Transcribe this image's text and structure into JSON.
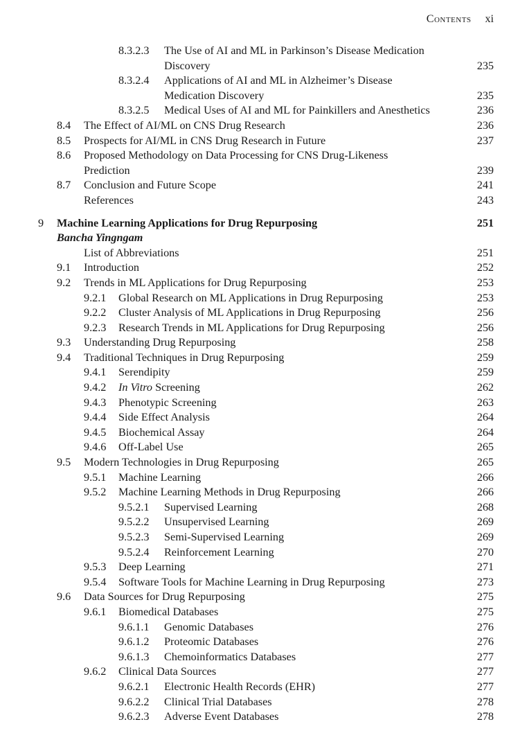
{
  "header": {
    "title": "Contents",
    "page": "xi"
  },
  "entries": [
    {
      "level": 3,
      "num": "8.3.2.3",
      "lines": [
        "The Use of AI and ML in Parkinson’s Disease Medication",
        "Discovery"
      ],
      "page": "235"
    },
    {
      "level": 3,
      "num": "8.3.2.4",
      "lines": [
        "Applications of AI and ML in Alzheimer’s Disease",
        "Medication Discovery"
      ],
      "page": "235"
    },
    {
      "level": 3,
      "num": "8.3.2.5",
      "lines": [
        "Medical Uses of AI and ML for Painkillers and Anesthetics"
      ],
      "page": "236"
    },
    {
      "level": 1,
      "num": "8.4",
      "lines": [
        "The Effect of AI/ML on CNS Drug Research"
      ],
      "page": "236"
    },
    {
      "level": 1,
      "num": "8.5",
      "lines": [
        "Prospects for AI/ML in CNS Drug Research in Future"
      ],
      "page": "237"
    },
    {
      "level": 1,
      "num": "8.6",
      "lines": [
        "Proposed Methodology on Data Processing for CNS Drug-Likeness",
        "Prediction"
      ],
      "page": "239"
    },
    {
      "level": 1,
      "num": "8.7",
      "lines": [
        "Conclusion and Future Scope"
      ],
      "page": "241"
    },
    {
      "level": 1,
      "num": "",
      "lines": [
        "References"
      ],
      "page": "243"
    },
    {
      "level": 0,
      "num": "9",
      "lines": [
        "Machine Learning Applications for Drug Repurposing"
      ],
      "page": "251",
      "author": "Bancha Yingngam"
    },
    {
      "level": 1,
      "num": "",
      "lines": [
        "List of Abbreviations"
      ],
      "page": "251"
    },
    {
      "level": 1,
      "num": "9.1",
      "lines": [
        "Introduction"
      ],
      "page": "252"
    },
    {
      "level": 1,
      "num": "9.2",
      "lines": [
        "Trends in ML Applications for Drug Repurposing"
      ],
      "page": "253"
    },
    {
      "level": 2,
      "num": "9.2.1",
      "lines": [
        "Global Research on ML Applications in Drug Repurposing"
      ],
      "page": "253"
    },
    {
      "level": 2,
      "num": "9.2.2",
      "lines": [
        "Cluster Analysis of ML Applications in Drug Repurposing"
      ],
      "page": "256"
    },
    {
      "level": 2,
      "num": "9.2.3",
      "lines": [
        "Research Trends in ML Applications for Drug Repurposing"
      ],
      "page": "256"
    },
    {
      "level": 1,
      "num": "9.3",
      "lines": [
        "Understanding Drug Repurposing"
      ],
      "page": "258"
    },
    {
      "level": 1,
      "num": "9.4",
      "lines": [
        "Traditional Techniques in Drug Repurposing"
      ],
      "page": "259"
    },
    {
      "level": 2,
      "num": "9.4.1",
      "lines": [
        "Serendipity"
      ],
      "page": "259"
    },
    {
      "level": 2,
      "num": "9.4.2",
      "italic": "In Vitro",
      "lines": [
        " Screening"
      ],
      "page": "262"
    },
    {
      "level": 2,
      "num": "9.4.3",
      "lines": [
        "Phenotypic Screening"
      ],
      "page": "263"
    },
    {
      "level": 2,
      "num": "9.4.4",
      "lines": [
        "Side Effect Analysis"
      ],
      "page": "264"
    },
    {
      "level": 2,
      "num": "9.4.5",
      "lines": [
        "Biochemical Assay"
      ],
      "page": "264"
    },
    {
      "level": 2,
      "num": "9.4.6",
      "lines": [
        "Off-Label Use"
      ],
      "page": "265"
    },
    {
      "level": 1,
      "num": "9.5",
      "lines": [
        "Modern Technologies in Drug Repurposing"
      ],
      "page": "265"
    },
    {
      "level": 2,
      "num": "9.5.1",
      "lines": [
        "Machine Learning"
      ],
      "page": "266"
    },
    {
      "level": 2,
      "num": "9.5.2",
      "lines": [
        "Machine Learning Methods in Drug Repurposing"
      ],
      "page": "266"
    },
    {
      "level": 3,
      "num": "9.5.2.1",
      "lines": [
        "Supervised Learning"
      ],
      "page": "268"
    },
    {
      "level": 3,
      "num": "9.5.2.2",
      "lines": [
        "Unsupervised Learning"
      ],
      "page": "269"
    },
    {
      "level": 3,
      "num": "9.5.2.3",
      "lines": [
        "Semi-Supervised Learning"
      ],
      "page": "269"
    },
    {
      "level": 3,
      "num": "9.5.2.4",
      "lines": [
        "Reinforcement Learning"
      ],
      "page": "270"
    },
    {
      "level": 2,
      "num": "9.5.3",
      "lines": [
        "Deep Learning"
      ],
      "page": "271"
    },
    {
      "level": 2,
      "num": "9.5.4",
      "lines": [
        "Software Tools for Machine Learning in Drug Repurposing"
      ],
      "page": "273"
    },
    {
      "level": 1,
      "num": "9.6",
      "lines": [
        "Data Sources for Drug Repurposing"
      ],
      "page": "275"
    },
    {
      "level": 2,
      "num": "9.6.1",
      "lines": [
        "Biomedical Databases"
      ],
      "page": "275"
    },
    {
      "level": 3,
      "num": "9.6.1.1",
      "lines": [
        "Genomic Databases"
      ],
      "page": "276"
    },
    {
      "level": 3,
      "num": "9.6.1.2",
      "lines": [
        "Proteomic Databases"
      ],
      "page": "276"
    },
    {
      "level": 3,
      "num": "9.6.1.3",
      "lines": [
        "Chemoinformatics Databases"
      ],
      "page": "277"
    },
    {
      "level": 2,
      "num": "9.6.2",
      "lines": [
        "Clinical Data Sources"
      ],
      "page": "277"
    },
    {
      "level": 3,
      "num": "9.6.2.1",
      "lines": [
        "Electronic Health Records (EHR)"
      ],
      "page": "277"
    },
    {
      "level": 3,
      "num": "9.6.2.2",
      "lines": [
        "Clinical Trial Databases"
      ],
      "page": "278"
    },
    {
      "level": 3,
      "num": "9.6.2.3",
      "lines": [
        "Adverse Event Databases"
      ],
      "page": "278"
    }
  ]
}
